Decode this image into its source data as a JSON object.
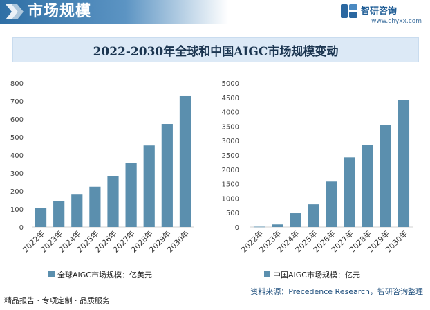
{
  "header": {
    "section_title": "市场规模"
  },
  "brand": {
    "name": "智研咨询",
    "url": "www.chyxx.com"
  },
  "chart_title": "2022-2030年全球和中国AIGC市场规模变动",
  "chart_data": [
    {
      "type": "bar",
      "categories": [
        "2022年",
        "2023年",
        "2024年",
        "2025年",
        "2026年",
        "2027年",
        "2028年",
        "2029年",
        "2030年"
      ],
      "series": [
        {
          "name": "全球AIGC市场规模：亿美元",
          "values": [
            107,
            143,
            180,
            224,
            281,
            357,
            453,
            573,
            727
          ]
        }
      ],
      "yticks": [
        "0",
        "100",
        "200",
        "300",
        "400",
        "500",
        "600",
        "700",
        "800"
      ],
      "ylim": [
        0,
        800
      ],
      "legend": "bottom",
      "grid": false
    },
    {
      "type": "bar",
      "categories": [
        "2022年",
        "2023年",
        "2024年",
        "2025年",
        "2026年",
        "2027年",
        "2028年",
        "2029年",
        "2030年"
      ],
      "series": [
        {
          "name": "中国AIGC市场规模：亿元",
          "values": [
            12,
            90,
            480,
            790,
            1580,
            2420,
            2860,
            3540,
            4420
          ]
        }
      ],
      "yticks": [
        "0",
        "500",
        "1000",
        "1500",
        "2000",
        "2500",
        "3000",
        "3500",
        "4000",
        "4500",
        "5000"
      ],
      "ylim": [
        0,
        5000
      ],
      "legend": "bottom",
      "grid": false
    }
  ],
  "colors": {
    "bar": "#5b8fae",
    "header": "#2f6fa5"
  },
  "footer": {
    "left": "精品报告 · 专项定制 · 品质服务",
    "source": "资料来源：Precedence Research，智研咨询整理"
  }
}
